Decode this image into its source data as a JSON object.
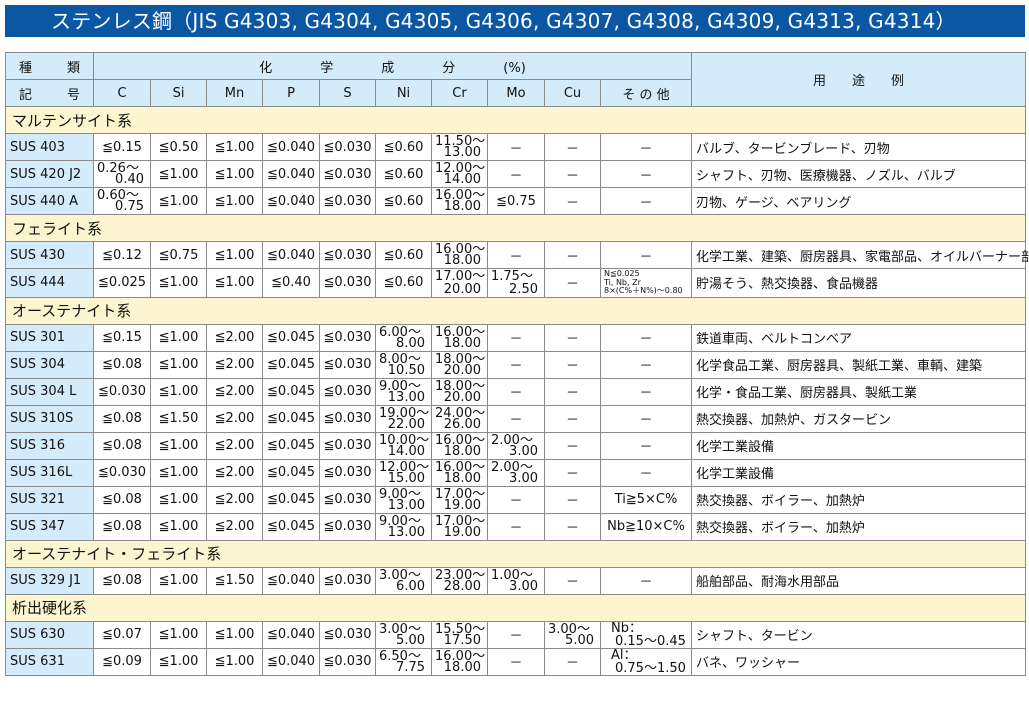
{
  "title": "ステンレス鋼（JIS G4303, G4304, G4305, G4306, G4307, G4308, G4309, G4313, G4314）",
  "colors": {
    "title_bg": "#0b57a4",
    "header_bg": "#d3ebfa",
    "category_bg": "#fdf5cf"
  },
  "header": {
    "type_top": [
      "種",
      "類"
    ],
    "type_bottom": [
      "記",
      "号"
    ],
    "chem": [
      "化",
      "学",
      "成",
      "分",
      "(%)"
    ],
    "use": "用　　途　　例",
    "columns": [
      "C",
      "Si",
      "Mn",
      "P",
      "S",
      "Ni",
      "Cr",
      "Mo",
      "Cu",
      "そ の 他"
    ]
  },
  "groups": [
    {
      "name": "マルテンサイト系",
      "rows": [
        {
          "grade": "SUS 403",
          "cells": [
            "≦0.15",
            "≦0.50",
            "≦1.00",
            "≦0.040",
            "≦0.030",
            "≦0.60",
            [
              "11.50～",
              "13.00"
            ],
            "－",
            "－",
            "－"
          ],
          "use": "バルブ、タービンブレード、刃物"
        },
        {
          "grade": "SUS 420 J2",
          "cells": [
            [
              "0.26～",
              "0.40"
            ],
            "≦1.00",
            "≦1.00",
            "≦0.040",
            "≦0.030",
            "≦0.60",
            [
              "12.00～",
              "14.00"
            ],
            "－",
            "－",
            "－"
          ],
          "use": "シャフト、刃物、医療機器、ノズル、バルブ"
        },
        {
          "grade": "SUS 440 A",
          "cells": [
            [
              "0.60～",
              "0.75"
            ],
            "≦1.00",
            "≦1.00",
            "≦0.040",
            "≦0.030",
            "≦0.60",
            [
              "16.00～",
              "18.00"
            ],
            "≦0.75",
            "－",
            "－"
          ],
          "use": "刃物、ゲージ、ベアリング"
        }
      ]
    },
    {
      "name": "フェライト系",
      "rows": [
        {
          "grade": "SUS 430",
          "cells": [
            "≦0.12",
            "≦0.75",
            "≦1.00",
            "≦0.040",
            "≦0.030",
            "≦0.60",
            [
              "16.00～",
              "18.00"
            ],
            "－",
            "－",
            "－"
          ],
          "use": "化学工業、建築、厨房器具、家電部品、オイルバーナー部品"
        },
        {
          "grade": "SUS 444",
          "cells": [
            "≦0.025",
            "≦1.00",
            "≦1.00",
            "≦0.40",
            "≦0.030",
            "≦0.60",
            [
              "17.00～",
              "20.00"
            ],
            [
              "1.75～",
              "2.50"
            ],
            "－",
            {
              "tiny": [
                "N≦0.025",
                "Ti, Nb, Zr",
                "8×(C%＋N%)～0.80"
              ]
            }
          ],
          "use": "貯湯そう、熱交換器、食品機器"
        }
      ]
    },
    {
      "name": "オーステナイト系",
      "rows": [
        {
          "grade": "SUS 301",
          "cells": [
            "≦0.15",
            "≦1.00",
            "≦2.00",
            "≦0.045",
            "≦0.030",
            [
              "6.00～",
              "8.00"
            ],
            [
              "16.00～",
              "18.00"
            ],
            "－",
            "－",
            "－"
          ],
          "use": "鉄道車両、ベルトコンベア"
        },
        {
          "grade": "SUS 304",
          "cells": [
            "≦0.08",
            "≦1.00",
            "≦2.00",
            "≦0.045",
            "≦0.030",
            [
              "8.00～",
              "10.50"
            ],
            [
              "18.00～",
              "20.00"
            ],
            "－",
            "－",
            "－"
          ],
          "use": "化学食品工業、厨房器具、製紙工業、車輌、建築"
        },
        {
          "grade": "SUS 304 L",
          "cells": [
            "≦0.030",
            "≦1.00",
            "≦2.00",
            "≦0.045",
            "≦0.030",
            [
              "9.00～",
              "13.00"
            ],
            [
              "18.00～",
              "20.00"
            ],
            "－",
            "－",
            "－"
          ],
          "use": "化学・食品工業、厨房器具、製紙工業"
        },
        {
          "grade": "SUS 310S",
          "cells": [
            "≦0.08",
            "≦1.50",
            "≦2.00",
            "≦0.045",
            "≦0.030",
            [
              "19.00～",
              "22.00"
            ],
            [
              "24.00～",
              "26.00"
            ],
            "－",
            "－",
            "－"
          ],
          "use": "熱交換器、加熱炉、ガスタービン"
        },
        {
          "grade": "SUS 316",
          "cells": [
            "≦0.08",
            "≦1.00",
            "≦2.00",
            "≦0.045",
            "≦0.030",
            [
              "10.00～",
              "14.00"
            ],
            [
              "16.00～",
              "18.00"
            ],
            [
              "2.00～",
              "3.00"
            ],
            "－",
            "－"
          ],
          "use": "化学工業設備"
        },
        {
          "grade": "SUS 316L",
          "cells": [
            "≦0.030",
            "≦1.00",
            "≦2.00",
            "≦0.045",
            "≦0.030",
            [
              "12.00～",
              "15.00"
            ],
            [
              "16.00～",
              "18.00"
            ],
            [
              "2.00～",
              "3.00"
            ],
            "－",
            "－"
          ],
          "use": "化学工業設備"
        },
        {
          "grade": "SUS 321",
          "cells": [
            "≦0.08",
            "≦1.00",
            "≦2.00",
            "≦0.045",
            "≦0.030",
            [
              "9.00～",
              "13.00"
            ],
            [
              "17.00～",
              "19.00"
            ],
            "－",
            "－",
            "Ti≧5×C%"
          ],
          "use": "熱交換器、ボイラー、加熱炉"
        },
        {
          "grade": "SUS 347",
          "cells": [
            "≦0.08",
            "≦1.00",
            "≦2.00",
            "≦0.045",
            "≦0.030",
            [
              "9.00～",
              "13.00"
            ],
            [
              "17.00～",
              "19.00"
            ],
            "－",
            "－",
            "Nb≧10×C%"
          ],
          "use": "熱交換器、ボイラー、加熱炉"
        }
      ]
    },
    {
      "name": "オーステナイト・フェライト系",
      "rows": [
        {
          "grade": "SUS 329 J1",
          "cells": [
            "≦0.08",
            "≦1.00",
            "≦1.50",
            "≦0.040",
            "≦0.030",
            [
              "3.00～",
              "6.00"
            ],
            [
              "23.00～",
              "28.00"
            ],
            [
              "1.00～",
              "3.00"
            ],
            "－",
            "－"
          ],
          "use": "船舶部品、耐海水用部品"
        }
      ]
    },
    {
      "name": "析出硬化系",
      "rows": [
        {
          "grade": "SUS 630",
          "cells": [
            "≦0.07",
            "≦1.00",
            "≦1.00",
            "≦0.040",
            "≦0.030",
            [
              "3.00～",
              "5.00"
            ],
            [
              "15.50～",
              "17.50"
            ],
            "－",
            [
              "3.00～",
              "5.00"
            ],
            {
              "two": [
                "Nb：",
                "0.15～0.45"
              ]
            }
          ],
          "use": "シャフト、タービン"
        },
        {
          "grade": "SUS 631",
          "cells": [
            "≦0.09",
            "≦1.00",
            "≦1.00",
            "≦0.040",
            "≦0.030",
            [
              "6.50～",
              "7.75"
            ],
            [
              "16.00～",
              "18.00"
            ],
            "－",
            "－",
            {
              "two": [
                "Al：",
                "0.75～1.50"
              ]
            }
          ],
          "use": "バネ、ワッシャー"
        }
      ]
    }
  ]
}
